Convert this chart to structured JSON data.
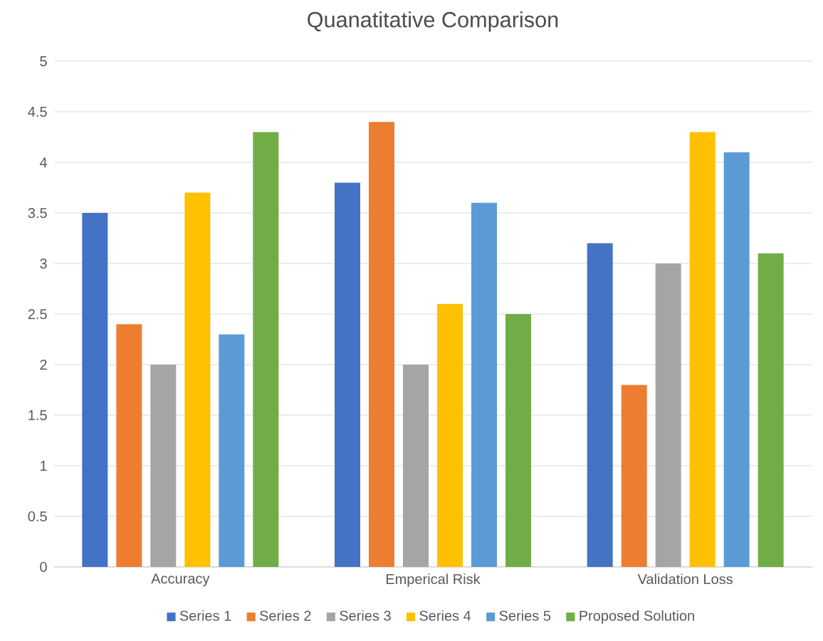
{
  "chart_data": {
    "type": "bar",
    "title": "Quanatitative Comparison",
    "categories": [
      "Accuracy",
      "Emperical Risk",
      "Validation Loss"
    ],
    "series": [
      {
        "name": "Series 1",
        "color": "#4472c4",
        "values": [
          3.5,
          3.8,
          3.2
        ]
      },
      {
        "name": "Series 2",
        "color": "#ed7d31",
        "values": [
          2.4,
          4.4,
          1.8
        ]
      },
      {
        "name": "Series 3",
        "color": "#a5a5a5",
        "values": [
          2.0,
          2.0,
          3.0
        ]
      },
      {
        "name": "Series 4",
        "color": "#ffc000",
        "values": [
          3.7,
          2.6,
          4.3
        ]
      },
      {
        "name": "Series 5",
        "color": "#5b9bd5",
        "values": [
          2.3,
          3.6,
          4.1
        ]
      },
      {
        "name": "Proposed Solution",
        "color": "#70ad47",
        "values": [
          4.3,
          2.5,
          3.1
        ]
      }
    ],
    "ylim": [
      0,
      5
    ],
    "yticks": [
      0,
      0.5,
      1,
      1.5,
      2,
      2.5,
      3,
      3.5,
      4,
      4.5,
      5
    ],
    "grid": "y",
    "legend": "bottom"
  }
}
